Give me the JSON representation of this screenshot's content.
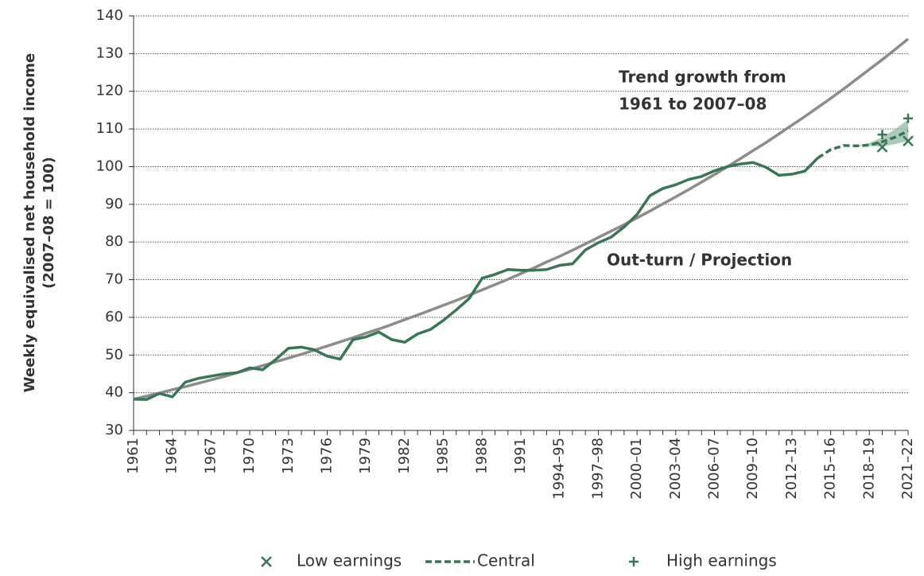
{
  "chart_data": {
    "type": "line",
    "y_label": [
      "Weekly equivalised net household  income",
      "(2007–08 = 100)"
    ],
    "categories": [
      "1961",
      null,
      null,
      "1964",
      null,
      null,
      "1967",
      null,
      null,
      "1970",
      null,
      null,
      "1973",
      null,
      null,
      "1976",
      null,
      null,
      "1979",
      null,
      null,
      "1982",
      null,
      null,
      "1985",
      null,
      null,
      "1988",
      null,
      null,
      "1991",
      null,
      null,
      "1994–95",
      null,
      null,
      "1997–98",
      null,
      null,
      "2000–01",
      null,
      null,
      "2003–04",
      null,
      null,
      "2006–07",
      null,
      null,
      "2009–10",
      null,
      null,
      "2012–13",
      null,
      null,
      "2015–16",
      null,
      null,
      "2018–19",
      null,
      null,
      "2021–22"
    ],
    "ylim": [
      30,
      140
    ],
    "yticks": [
      30,
      40,
      50,
      60,
      70,
      80,
      90,
      100,
      110,
      120,
      130,
      140
    ],
    "grid": true,
    "annotations": [
      {
        "lines": [
          "Trend growth from",
          "1961 to 2007–08"
        ],
        "color": "#8c8c8c"
      },
      {
        "lines": [
          "Out-turn / Projection"
        ],
        "color": "#3a7557"
      }
    ],
    "trend": {
      "color": "#8c8c8c",
      "values": [
        38.3,
        39.1,
        39.9,
        40.8,
        41.6,
        42.5,
        43.4,
        44.3,
        45.3,
        46.2,
        47.2,
        48.2,
        49.2,
        50.2,
        51.3,
        52.4,
        53.5,
        54.6,
        55.8,
        56.9,
        58.1,
        59.4,
        60.6,
        61.9,
        63.2,
        64.5,
        65.9,
        67.3,
        68.7,
        70.1,
        71.6,
        73.1,
        74.7,
        76.2,
        77.8,
        79.5,
        81.2,
        82.9,
        84.6,
        86.4,
        88.2,
        90.1,
        92.0,
        93.9,
        95.9,
        97.9,
        100.0,
        102.1,
        104.3,
        106.4,
        108.7,
        111.0,
        113.3,
        115.7,
        118.1,
        120.6,
        123.2,
        125.8,
        128.4,
        131.1,
        133.9
      ]
    },
    "outturn": {
      "color": "#3a7557",
      "values": [
        38.3,
        38.2,
        39.8,
        38.9,
        42.8,
        43.8,
        44.4,
        45.0,
        45.3,
        46.6,
        46.1,
        48.8,
        51.8,
        52.1,
        51.4,
        49.7,
        48.9,
        54.1,
        54.8,
        56.1,
        54.1,
        53.4,
        55.6,
        56.8,
        59.2,
        62.0,
        65.0,
        70.4,
        71.4,
        72.7,
        72.5,
        72.5,
        72.7,
        73.8,
        74.2,
        77.9,
        79.8,
        81.3,
        84.0,
        87.3,
        92.3,
        94.2,
        95.2,
        96.6,
        97.4,
        98.9,
        100.0,
        100.7,
        101.1,
        99.8,
        97.7,
        98.0,
        98.8,
        102.3,
        null,
        null,
        null,
        null,
        null,
        null,
        null
      ]
    },
    "band": {
      "color": "#8fbb9e",
      "lower": [
        null,
        null,
        null,
        null,
        null,
        null,
        null,
        null,
        null,
        null,
        null,
        null,
        null,
        null,
        null,
        null,
        null,
        null,
        null,
        null,
        null,
        null,
        null,
        null,
        null,
        null,
        null,
        null,
        null,
        null,
        null,
        null,
        null,
        null,
        null,
        null,
        null,
        null,
        null,
        null,
        null,
        null,
        null,
        null,
        null,
        null,
        null,
        null,
        null,
        null,
        null,
        null,
        null,
        null,
        null,
        null,
        105.6,
        105.5,
        105.3,
        106.0,
        106.8
      ],
      "upper": [
        null,
        null,
        null,
        null,
        null,
        null,
        null,
        null,
        null,
        null,
        null,
        null,
        null,
        null,
        null,
        null,
        null,
        null,
        null,
        null,
        null,
        null,
        null,
        null,
        null,
        null,
        null,
        null,
        null,
        null,
        null,
        null,
        null,
        null,
        null,
        null,
        null,
        null,
        null,
        null,
        null,
        null,
        null,
        null,
        null,
        null,
        null,
        null,
        null,
        null,
        null,
        null,
        null,
        null,
        null,
        null,
        105.6,
        106.3,
        107.8,
        110.0,
        112.5
      ]
    },
    "series": [
      {
        "name": "Low earnings",
        "color": "#3a7557",
        "marker": "x",
        "values": [
          null,
          null,
          null,
          null,
          null,
          null,
          null,
          null,
          null,
          null,
          null,
          null,
          null,
          null,
          null,
          null,
          null,
          null,
          null,
          null,
          null,
          null,
          null,
          null,
          null,
          null,
          null,
          null,
          null,
          null,
          null,
          null,
          null,
          null,
          null,
          null,
          null,
          null,
          null,
          null,
          null,
          null,
          null,
          null,
          null,
          null,
          null,
          null,
          null,
          null,
          null,
          null,
          null,
          null,
          null,
          null,
          null,
          null,
          105.2,
          null,
          106.8
        ]
      },
      {
        "name": "Central",
        "color": "#3a7557",
        "marker": "dash",
        "values": [
          null,
          null,
          null,
          null,
          null,
          null,
          null,
          null,
          null,
          null,
          null,
          null,
          null,
          null,
          null,
          null,
          null,
          null,
          null,
          null,
          null,
          null,
          null,
          null,
          null,
          null,
          null,
          null,
          null,
          null,
          null,
          null,
          null,
          null,
          null,
          null,
          null,
          null,
          null,
          null,
          null,
          null,
          null,
          null,
          null,
          null,
          null,
          null,
          null,
          null,
          null,
          null,
          null,
          102.3,
          104.5,
          105.6,
          105.5,
          105.7,
          106.6,
          107.8,
          109.5
        ]
      },
      {
        "name": "High earnings",
        "color": "#3a7557",
        "marker": "+",
        "values": [
          null,
          null,
          null,
          null,
          null,
          null,
          null,
          null,
          null,
          null,
          null,
          null,
          null,
          null,
          null,
          null,
          null,
          null,
          null,
          null,
          null,
          null,
          null,
          null,
          null,
          null,
          null,
          null,
          null,
          null,
          null,
          null,
          null,
          null,
          null,
          null,
          null,
          null,
          null,
          null,
          null,
          null,
          null,
          null,
          null,
          null,
          null,
          null,
          null,
          null,
          null,
          null,
          null,
          null,
          null,
          null,
          null,
          null,
          108.5,
          null,
          112.8
        ]
      }
    ]
  }
}
